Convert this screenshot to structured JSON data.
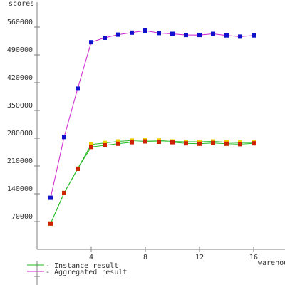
{
  "chart_data": {
    "type": "line",
    "ylabel": "scores",
    "xlabel": "warehouses",
    "xlim": [
      0,
      18
    ],
    "ylim": [
      0,
      630000
    ],
    "xticks": [
      4,
      8,
      12,
      16
    ],
    "xtick_labels": [
      "4",
      "8",
      "12",
      "16"
    ],
    "yticks": [
      70000,
      140000,
      210000,
      280000,
      350000,
      420000,
      490000,
      560000
    ],
    "ytick_labels": [
      "70000",
      "140000",
      "210000",
      "280000",
      "350000",
      "420000",
      "490000",
      "560000"
    ],
    "grid": false,
    "legend_position": "bottom-left",
    "legend": [
      {
        "label": "- Instance result",
        "color": "#22bb22"
      },
      {
        "label": "- Aggregated result",
        "color": "#cc22cc"
      }
    ],
    "series": [
      {
        "color": "#cc22cc",
        "marker_color": "#1111cc",
        "x": [
          1,
          2,
          3,
          4,
          5,
          6,
          7,
          8,
          9,
          10,
          11,
          12,
          13,
          14,
          15,
          16
        ],
        "y": [
          130000,
          283000,
          405000,
          522000,
          533000,
          541000,
          546000,
          551000,
          545000,
          543000,
          540000,
          540000,
          543000,
          539000,
          536000,
          539000
        ]
      },
      {
        "color": "#22bb22",
        "marker_color": "#eecc00",
        "x": [
          1,
          2,
          3,
          4,
          5,
          6,
          7,
          8,
          9,
          10,
          11,
          12,
          13,
          14,
          15,
          16
        ],
        "y": [
          65000,
          142000,
          203000,
          264000,
          268000,
          272000,
          274000,
          275000,
          274000,
          272000,
          271000,
          271000,
          272000,
          270000,
          269000,
          269000
        ]
      },
      {
        "color": "#22bb22",
        "marker_color": "#cc2200",
        "x": [
          1,
          2,
          3,
          4,
          5,
          6,
          7,
          8,
          9,
          10,
          11,
          12,
          13,
          14,
          15,
          16
        ],
        "y": [
          65000,
          142000,
          203000,
          258000,
          262000,
          266000,
          270000,
          272000,
          271000,
          270000,
          267000,
          266000,
          268000,
          266000,
          265000,
          267000
        ]
      }
    ]
  }
}
